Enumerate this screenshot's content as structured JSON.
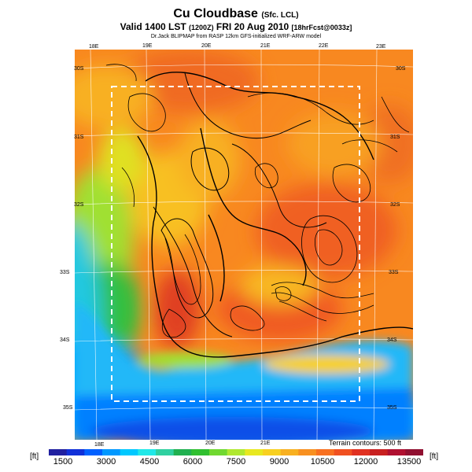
{
  "header": {
    "title": "Cu Cloudbase",
    "title_suffix": "(Sfc. LCL)",
    "valid": "Valid 1400 LST",
    "valid_utc": "(1200Z)",
    "date": "FRI 20 Aug 2010",
    "forecast": "[18hrFcst@0033z]",
    "credits": "Dr.Jack BLIPMAP from RASP 12km GFS-initialized WRF-ARW model"
  },
  "map": {
    "lon_labels_top": [
      "18E",
      "19E",
      "20E",
      "21E",
      "22E",
      "23E"
    ],
    "lon_labels_bottom": [
      "18E",
      "19E",
      "20E",
      "21E"
    ],
    "lat_labels_left": [
      "30S",
      "31S",
      "32S",
      "33S",
      "34S",
      "35S"
    ],
    "lat_labels_right": [
      "30S",
      "31S",
      "32S",
      "33S",
      "34S",
      "35S"
    ],
    "terrain_contours": "Terrain contours: 500 ft"
  },
  "colorbar": {
    "unit_left": "[ft]",
    "unit_right": "[ft]",
    "ticks": [
      "1500",
      "3000",
      "4500",
      "6000",
      "7500",
      "9000",
      "10500",
      "12000",
      "13500"
    ],
    "colors": [
      "#2020a0",
      "#1030d8",
      "#0060ff",
      "#0098ff",
      "#00c8ff",
      "#20e8e8",
      "#30d0a0",
      "#20b050",
      "#30c030",
      "#70d830",
      "#b0e830",
      "#e8e820",
      "#f8d020",
      "#f8b020",
      "#f89020",
      "#f87020",
      "#f05020",
      "#e03020",
      "#c82020",
      "#b01030",
      "#901030"
    ]
  }
}
